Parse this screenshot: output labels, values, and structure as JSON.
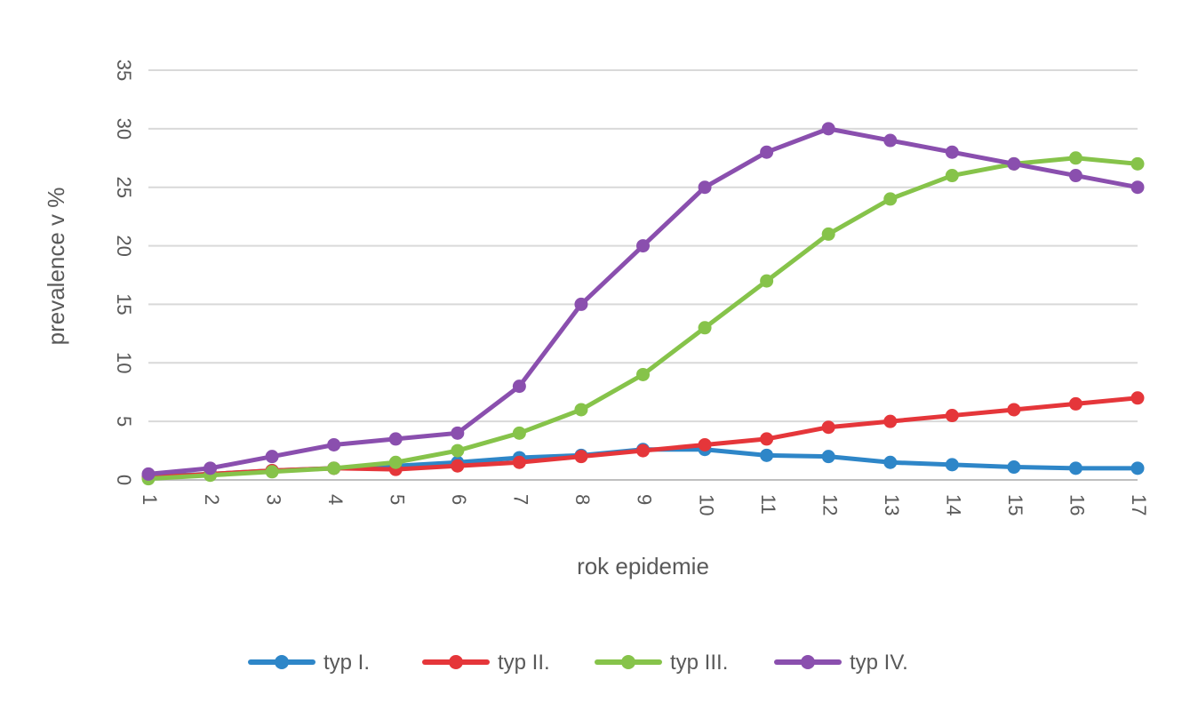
{
  "chart_data": {
    "type": "line",
    "title": "",
    "xlabel": "rok epidemie",
    "ylabel": "prevalence v %",
    "x": [
      1,
      2,
      3,
      4,
      5,
      6,
      7,
      8,
      9,
      10,
      11,
      12,
      13,
      14,
      15,
      16,
      17
    ],
    "x_tick_labels": [
      "1",
      "2",
      "3",
      "4",
      "5",
      "6",
      "7",
      "8",
      "9",
      "10",
      "11",
      "12",
      "13",
      "14",
      "15",
      "16",
      "17"
    ],
    "y_ticks": [
      0,
      5,
      10,
      15,
      20,
      25,
      30,
      35
    ],
    "y_tick_labels": [
      "0",
      "5",
      "10",
      "15",
      "20",
      "25",
      "30",
      "35"
    ],
    "ylim": [
      0,
      35
    ],
    "grid": true,
    "legend_position": "bottom",
    "series": [
      {
        "name": "typ I.",
        "color": "#2e86c8",
        "values": [
          0.3,
          0.5,
          0.8,
          1.0,
          1.2,
          1.5,
          1.9,
          2.1,
          2.6,
          2.6,
          2.1,
          2.0,
          1.5,
          1.3,
          1.1,
          1.0,
          1.0
        ]
      },
      {
        "name": "typ II.",
        "color": "#e5363a",
        "values": [
          0.2,
          0.5,
          0.8,
          1.0,
          0.9,
          1.2,
          1.5,
          2.0,
          2.5,
          3.0,
          3.5,
          4.5,
          5.0,
          5.5,
          6.0,
          6.5,
          7.0
        ]
      },
      {
        "name": "typ III.",
        "color": "#86c34a",
        "values": [
          0.1,
          0.4,
          0.7,
          1.0,
          1.5,
          2.5,
          4.0,
          6.0,
          9.0,
          13.0,
          17.0,
          21.0,
          24.0,
          26.0,
          27.0,
          27.5,
          27.0
        ]
      },
      {
        "name": "typ IV.",
        "color": "#8a4fae",
        "values": [
          0.5,
          1.0,
          2.0,
          3.0,
          3.5,
          4.0,
          8.0,
          15.0,
          20.0,
          25.0,
          28.0,
          30.0,
          29.0,
          28.0,
          27.0,
          26.0,
          25.0
        ]
      }
    ]
  }
}
